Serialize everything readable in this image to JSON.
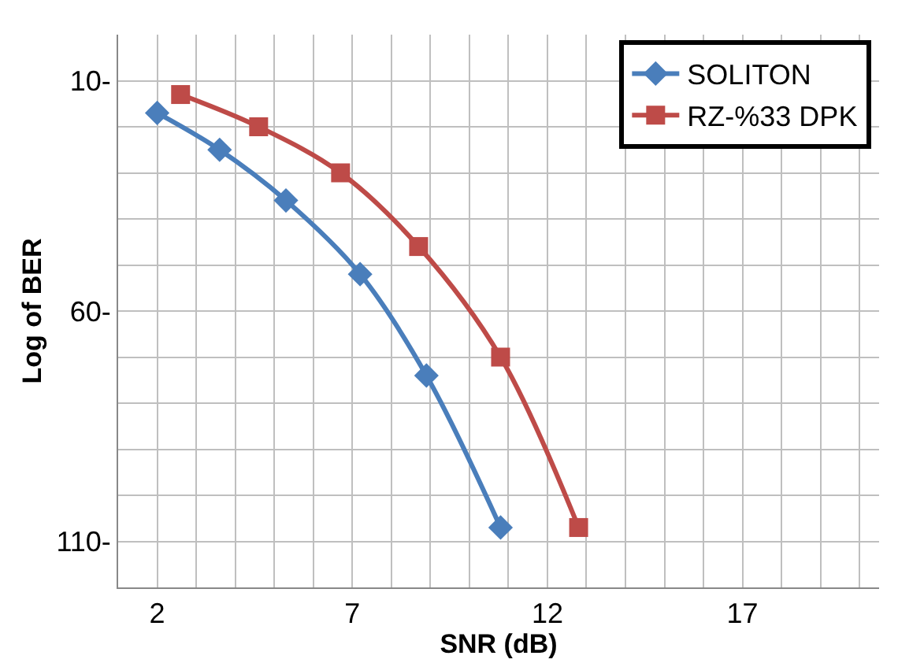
{
  "chart_data": {
    "type": "line",
    "xlabel": "SNR (dB)",
    "ylabel": "Log of BER",
    "xlim": [
      1,
      20.5
    ],
    "ylim": [
      120,
      0
    ],
    "xticks": [
      {
        "value": 1,
        "label": null
      },
      2,
      {
        "value": 3,
        "label": null
      },
      {
        "value": 4,
        "label": null
      },
      {
        "value": 5,
        "label": null
      },
      {
        "value": 6,
        "label": null
      },
      7,
      {
        "value": 8,
        "label": null
      },
      {
        "value": 9,
        "label": null
      },
      {
        "value": 10,
        "label": null
      },
      {
        "value": 11,
        "label": null
      },
      12,
      {
        "value": 13,
        "label": null
      },
      {
        "value": 14,
        "label": null
      },
      {
        "value": 15,
        "label": null
      },
      {
        "value": 16,
        "label": null
      },
      17,
      {
        "value": 18,
        "label": null
      },
      {
        "value": 19,
        "label": null
      },
      {
        "value": 20,
        "label": null
      }
    ],
    "yticks": [
      {
        "value": 10,
        "label": "10-"
      },
      {
        "value": 20,
        "label": null
      },
      {
        "value": 30,
        "label": null
      },
      {
        "value": 40,
        "label": null
      },
      {
        "value": 50,
        "label": null
      },
      {
        "value": 60,
        "label": "60-"
      },
      {
        "value": 70,
        "label": null
      },
      {
        "value": 80,
        "label": null
      },
      {
        "value": 90,
        "label": null
      },
      {
        "value": 100,
        "label": null
      },
      {
        "value": 110,
        "label": "110-"
      },
      {
        "value": 120,
        "label": null
      }
    ],
    "grid": true,
    "legend": "top right",
    "line_style": "solid",
    "series": [
      {
        "name": "SOLITON",
        "color": "#4a7ebb",
        "marker": "diamond",
        "x": [
          2,
          3.6,
          5.3,
          7.2,
          8.9,
          10.8
        ],
        "values": [
          17,
          25,
          36,
          52,
          74,
          107
        ]
      },
      {
        "name": "RZ-%33 DPK",
        "color": "#be4b48",
        "marker": "square",
        "x": [
          2.6,
          4.6,
          6.7,
          8.7,
          10.8,
          12.8
        ],
        "values": [
          13,
          20,
          30,
          46,
          70,
          107
        ]
      }
    ]
  }
}
